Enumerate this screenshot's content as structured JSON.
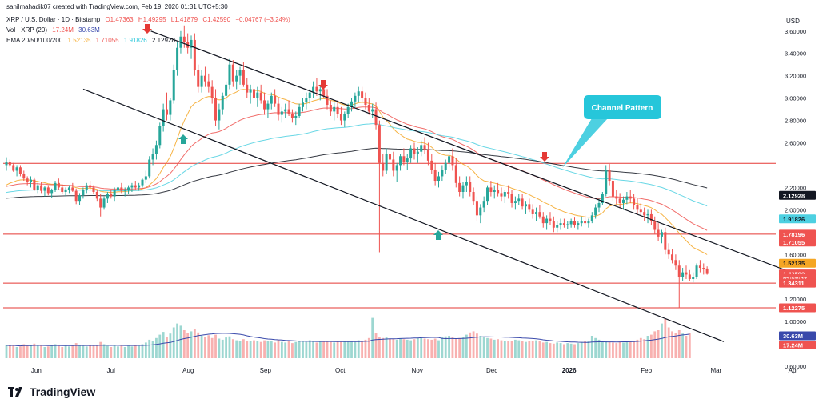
{
  "header": {
    "attribution": "sahilmahadik07 created with TradingView.com, Feb 19, 2026 01:31 UTC+5:30",
    "symbol_line": "XRP / U.S. Dollar · 1D · Bitstamp",
    "ohlc": {
      "open": "O1.47363",
      "high": "H1.49295",
      "low": "L1.41879",
      "close": "C1.42590",
      "change": "−0.04767 (−3.24%)"
    },
    "vol_label": "Vol · XRP (20)",
    "vol_values": [
      "17.24M",
      "30.63M"
    ],
    "ema_label": "EMA 20/50/100/200",
    "ema_values": [
      "1.52135",
      "1.71055",
      "1.91826",
      "2.12928"
    ],
    "currency": "USD"
  },
  "footer": {
    "brand": "TradingView"
  },
  "colors": {
    "up": "#26a69a",
    "down": "#ef5350",
    "ema20": "#f5a623",
    "ema50": "#ef5350",
    "ema100": "#4dd0e1",
    "ema200": "#131722",
    "hline": "#e53935",
    "channel": "#131722",
    "vol_ma": "#3949ab"
  },
  "chart_data": {
    "type": "candlestick",
    "x_labels": [
      "Jun",
      "Jul",
      "Aug",
      "Sep",
      "Oct",
      "Nov",
      "Dec",
      "2026",
      "Feb",
      "Mar",
      "Apr"
    ],
    "y_ticks": [
      "3.60000",
      "3.40000",
      "3.20000",
      "3.00000",
      "2.80000",
      "2.60000",
      "2.20000",
      "2.00000",
      "1.60000",
      "1.20000",
      "1.00000",
      "0.60000"
    ],
    "ylim": [
      0.6,
      3.72
    ],
    "horizontal_levels": [
      {
        "label": "2.41615",
        "value": 2.41615
      },
      {
        "label": "1.78196",
        "value": 1.78196
      },
      {
        "label": "1.34311",
        "value": 1.34311
      },
      {
        "label": "1.12275",
        "value": 1.12275
      }
    ],
    "price_labels": [
      {
        "label": "2.12928",
        "value": 2.12928,
        "style": "dark"
      },
      {
        "label": "1.91826",
        "value": 1.91826,
        "style": "cyan"
      },
      {
        "label": "1.78196",
        "value": 1.78196,
        "style": "red"
      },
      {
        "label": "1.71055",
        "value": 1.71055,
        "style": "red"
      },
      {
        "label": "1.52135",
        "value": 1.52135,
        "style": "orange"
      },
      {
        "label": "1.42590",
        "value": 1.4259,
        "style": "red"
      },
      {
        "label": "03:58:07",
        "value": 1.385,
        "style": "red"
      },
      {
        "label": "1.34311",
        "value": 1.34311,
        "style": "red"
      },
      {
        "label": "1.12275",
        "value": 1.12275,
        "style": "red"
      },
      {
        "label": "30.63M",
        "value": 0.872,
        "style": "blue"
      },
      {
        "label": "17.24M",
        "value": 0.79,
        "style": "red"
      }
    ],
    "channel_upper": [
      [
        "Jul 17",
        3.6
      ],
      [
        "Mar 30",
        1.45
      ]
    ],
    "channel_lower": [
      [
        "May 20",
        3.08
      ],
      [
        "Apr 6",
        0.82
      ]
    ],
    "annotation": {
      "text": "Channel Pattern"
    },
    "ohlc_daily": [
      [
        2.4,
        2.47,
        2.35,
        2.43
      ],
      [
        2.43,
        2.45,
        2.38,
        2.4
      ],
      [
        2.4,
        2.42,
        2.34,
        2.35
      ],
      [
        2.35,
        2.4,
        2.3,
        2.38
      ],
      [
        2.38,
        2.4,
        2.3,
        2.32
      ],
      [
        2.32,
        2.35,
        2.26,
        2.28
      ],
      [
        2.28,
        2.3,
        2.22,
        2.25
      ],
      [
        2.25,
        2.3,
        2.2,
        2.27
      ],
      [
        2.27,
        2.29,
        2.17,
        2.18
      ],
      [
        2.18,
        2.24,
        2.15,
        2.22
      ],
      [
        2.22,
        2.25,
        2.15,
        2.17
      ],
      [
        2.17,
        2.21,
        2.12,
        2.2
      ],
      [
        2.2,
        2.22,
        2.13,
        2.15
      ],
      [
        2.15,
        2.19,
        2.11,
        2.18
      ],
      [
        2.18,
        2.26,
        2.16,
        2.24
      ],
      [
        2.24,
        2.28,
        2.18,
        2.2
      ],
      [
        2.2,
        2.23,
        2.14,
        2.16
      ],
      [
        2.16,
        2.2,
        2.12,
        2.18
      ],
      [
        2.18,
        2.22,
        2.15,
        2.2
      ],
      [
        2.2,
        2.24,
        2.16,
        2.17
      ],
      [
        2.17,
        2.19,
        2.05,
        2.08
      ],
      [
        2.08,
        2.15,
        2.04,
        2.13
      ],
      [
        2.13,
        2.2,
        2.1,
        2.18
      ],
      [
        2.18,
        2.24,
        2.15,
        2.22
      ],
      [
        2.22,
        2.26,
        2.18,
        2.2
      ],
      [
        2.2,
        2.22,
        2.14,
        2.16
      ],
      [
        2.16,
        2.18,
        2.08,
        2.1
      ],
      [
        2.1,
        2.14,
        1.94,
        2.02
      ],
      [
        2.02,
        2.12,
        2.0,
        2.1
      ],
      [
        2.1,
        2.16,
        2.06,
        2.14
      ],
      [
        2.14,
        2.18,
        2.1,
        2.12
      ],
      [
        2.12,
        2.2,
        2.08,
        2.18
      ],
      [
        2.18,
        2.22,
        2.14,
        2.2
      ],
      [
        2.2,
        2.24,
        2.15,
        2.17
      ],
      [
        2.17,
        2.2,
        2.12,
        2.18
      ],
      [
        2.18,
        2.22,
        2.14,
        2.2
      ],
      [
        2.2,
        2.24,
        2.16,
        2.22
      ],
      [
        2.22,
        2.26,
        2.18,
        2.2
      ],
      [
        2.2,
        2.24,
        2.17,
        2.22
      ],
      [
        2.22,
        2.28,
        2.2,
        2.27
      ],
      [
        2.27,
        2.35,
        2.24,
        2.3
      ],
      [
        2.3,
        2.48,
        2.28,
        2.45
      ],
      [
        2.45,
        2.55,
        2.4,
        2.5
      ],
      [
        2.5,
        2.62,
        2.45,
        2.58
      ],
      [
        2.58,
        2.78,
        2.55,
        2.75
      ],
      [
        2.75,
        2.95,
        2.7,
        2.9
      ],
      [
        2.9,
        3.05,
        2.8,
        2.85
      ],
      [
        2.85,
        3.0,
        2.8,
        2.98
      ],
      [
        2.98,
        3.3,
        2.95,
        3.25
      ],
      [
        3.25,
        3.5,
        3.2,
        3.45
      ],
      [
        3.45,
        3.6,
        3.4,
        3.55
      ],
      [
        3.55,
        3.65,
        3.45,
        3.5
      ],
      [
        3.5,
        3.58,
        3.4,
        3.45
      ],
      [
        3.45,
        3.56,
        3.35,
        3.52
      ],
      [
        3.52,
        3.58,
        3.2,
        3.25
      ],
      [
        3.25,
        3.3,
        3.05,
        3.1
      ],
      [
        3.1,
        3.25,
        3.05,
        3.2
      ],
      [
        3.2,
        3.28,
        3.1,
        3.15
      ],
      [
        3.15,
        3.22,
        3.05,
        3.1
      ],
      [
        3.1,
        3.16,
        2.95,
        3.0
      ],
      [
        3.0,
        3.08,
        2.75,
        2.8
      ],
      [
        2.8,
        2.95,
        2.72,
        2.9
      ],
      [
        2.9,
        3.05,
        2.85,
        3.02
      ],
      [
        3.02,
        3.15,
        2.98,
        3.12
      ],
      [
        3.12,
        3.35,
        3.08,
        3.3
      ],
      [
        3.3,
        3.34,
        3.1,
        3.15
      ],
      [
        3.15,
        3.25,
        3.08,
        3.2
      ],
      [
        3.2,
        3.28,
        3.12,
        3.25
      ],
      [
        3.25,
        3.32,
        3.1,
        3.12
      ],
      [
        3.12,
        3.18,
        3.0,
        3.05
      ],
      [
        3.05,
        3.12,
        2.95,
        3.08
      ],
      [
        3.08,
        3.15,
        2.98,
        3.0
      ],
      [
        3.0,
        3.1,
        2.92,
        3.05
      ],
      [
        3.05,
        3.12,
        2.95,
        2.98
      ],
      [
        2.98,
        3.05,
        2.85,
        2.9
      ],
      [
        2.9,
        2.98,
        2.82,
        2.95
      ],
      [
        2.95,
        3.05,
        2.9,
        3.02
      ],
      [
        3.02,
        3.08,
        2.92,
        2.95
      ],
      [
        2.95,
        3.0,
        2.8,
        2.85
      ],
      [
        2.85,
        2.92,
        2.78,
        2.88
      ],
      [
        2.88,
        2.95,
        2.82,
        2.9
      ],
      [
        2.9,
        2.98,
        2.84,
        2.86
      ],
      [
        2.86,
        2.9,
        2.78,
        2.82
      ],
      [
        2.82,
        2.88,
        2.76,
        2.84
      ],
      [
        2.84,
        2.95,
        2.82,
        2.92
      ],
      [
        2.92,
        3.0,
        2.88,
        2.96
      ],
      [
        2.96,
        3.05,
        2.9,
        3.0
      ],
      [
        3.0,
        3.08,
        2.95,
        3.05
      ],
      [
        3.05,
        3.15,
        3.0,
        3.1
      ],
      [
        3.1,
        3.18,
        3.02,
        3.06
      ],
      [
        3.06,
        3.12,
        2.98,
        3.08
      ],
      [
        3.08,
        3.14,
        3.0,
        3.02
      ],
      [
        3.02,
        3.08,
        2.9,
        2.94
      ],
      [
        2.94,
        2.98,
        2.84,
        2.88
      ],
      [
        2.88,
        2.96,
        2.8,
        2.92
      ],
      [
        2.92,
        2.98,
        2.82,
        2.86
      ],
      [
        2.86,
        2.92,
        2.76,
        2.8
      ],
      [
        2.8,
        2.88,
        2.74,
        2.86
      ],
      [
        2.86,
        2.95,
        2.82,
        2.92
      ],
      [
        2.92,
        3.0,
        2.88,
        2.97
      ],
      [
        2.97,
        3.05,
        2.92,
        3.02
      ],
      [
        3.02,
        3.1,
        2.96,
        3.06
      ],
      [
        3.06,
        3.1,
        2.96,
        3.0
      ],
      [
        3.0,
        3.05,
        2.9,
        2.94
      ],
      [
        2.94,
        3.0,
        2.85,
        2.88
      ],
      [
        2.88,
        2.95,
        2.82,
        2.9
      ],
      [
        2.9,
        2.96,
        2.72,
        2.76
      ],
      [
        2.76,
        2.8,
        1.62,
        2.42
      ],
      [
        2.42,
        2.5,
        2.3,
        2.35
      ],
      [
        2.35,
        2.55,
        2.32,
        2.5
      ],
      [
        2.5,
        2.58,
        2.4,
        2.45
      ],
      [
        2.45,
        2.52,
        2.3,
        2.35
      ],
      [
        2.35,
        2.42,
        2.25,
        2.4
      ],
      [
        2.4,
        2.5,
        2.35,
        2.48
      ],
      [
        2.48,
        2.55,
        2.4,
        2.43
      ],
      [
        2.43,
        2.5,
        2.36,
        2.46
      ],
      [
        2.46,
        2.58,
        2.42,
        2.55
      ],
      [
        2.55,
        2.6,
        2.45,
        2.5
      ],
      [
        2.5,
        2.56,
        2.42,
        2.52
      ],
      [
        2.52,
        2.62,
        2.48,
        2.58
      ],
      [
        2.58,
        2.65,
        2.5,
        2.54
      ],
      [
        2.54,
        2.6,
        2.4,
        2.44
      ],
      [
        2.44,
        2.5,
        2.32,
        2.36
      ],
      [
        2.36,
        2.42,
        2.22,
        2.26
      ],
      [
        2.26,
        2.34,
        2.2,
        2.3
      ],
      [
        2.3,
        2.4,
        2.26,
        2.36
      ],
      [
        2.36,
        2.45,
        2.32,
        2.42
      ],
      [
        2.42,
        2.52,
        2.38,
        2.48
      ],
      [
        2.48,
        2.55,
        2.35,
        2.4
      ],
      [
        2.4,
        2.46,
        2.2,
        2.24
      ],
      [
        2.24,
        2.3,
        2.12,
        2.16
      ],
      [
        2.16,
        2.25,
        2.1,
        2.22
      ],
      [
        2.22,
        2.3,
        2.16,
        2.25
      ],
      [
        2.25,
        2.3,
        2.12,
        2.16
      ],
      [
        2.16,
        2.2,
        2.04,
        2.08
      ],
      [
        2.08,
        2.12,
        1.9,
        1.95
      ],
      [
        1.95,
        2.05,
        1.88,
        2.02
      ],
      [
        2.02,
        2.12,
        1.98,
        2.08
      ],
      [
        2.08,
        2.22,
        2.04,
        2.2
      ],
      [
        2.2,
        2.26,
        2.12,
        2.16
      ],
      [
        2.16,
        2.22,
        2.1,
        2.18
      ],
      [
        2.18,
        2.24,
        2.12,
        2.15
      ],
      [
        2.15,
        2.2,
        2.08,
        2.12
      ],
      [
        2.12,
        2.18,
        2.06,
        2.16
      ],
      [
        2.16,
        2.22,
        2.1,
        2.14
      ],
      [
        2.14,
        2.18,
        2.02,
        2.06
      ],
      [
        2.06,
        2.12,
        2.0,
        2.08
      ],
      [
        2.08,
        2.14,
        2.04,
        2.1
      ],
      [
        2.1,
        2.14,
        2.0,
        2.03
      ],
      [
        2.03,
        2.08,
        1.96,
        2.05
      ],
      [
        2.05,
        2.1,
        1.98,
        2.0
      ],
      [
        2.0,
        2.05,
        1.92,
        1.96
      ],
      [
        1.96,
        2.02,
        1.9,
        1.98
      ],
      [
        1.98,
        2.04,
        1.92,
        1.94
      ],
      [
        1.94,
        1.98,
        1.84,
        1.88
      ],
      [
        1.88,
        1.95,
        1.82,
        1.92
      ],
      [
        1.92,
        1.98,
        1.86,
        1.9
      ],
      [
        1.9,
        1.94,
        1.8,
        1.84
      ],
      [
        1.84,
        1.9,
        1.8,
        1.86
      ],
      [
        1.86,
        1.92,
        1.82,
        1.88
      ],
      [
        1.88,
        1.92,
        1.84,
        1.86
      ],
      [
        1.86,
        1.9,
        1.83,
        1.87
      ],
      [
        1.87,
        1.92,
        1.84,
        1.9
      ],
      [
        1.9,
        1.93,
        1.84,
        1.86
      ],
      [
        1.86,
        1.9,
        1.82,
        1.88
      ],
      [
        1.88,
        1.94,
        1.85,
        1.9
      ],
      [
        1.9,
        1.95,
        1.86,
        1.88
      ],
      [
        1.88,
        1.92,
        1.84,
        1.9
      ],
      [
        1.9,
        1.98,
        1.88,
        1.95
      ],
      [
        1.95,
        2.05,
        1.92,
        2.02
      ],
      [
        2.02,
        2.1,
        1.98,
        2.06
      ],
      [
        2.06,
        2.16,
        2.04,
        2.14
      ],
      [
        2.14,
        2.4,
        2.12,
        2.36
      ],
      [
        2.36,
        2.41,
        2.22,
        2.26
      ],
      [
        2.26,
        2.3,
        2.08,
        2.12
      ],
      [
        2.12,
        2.18,
        2.05,
        2.1
      ],
      [
        2.1,
        2.15,
        2.02,
        2.06
      ],
      [
        2.06,
        2.12,
        2.0,
        2.09
      ],
      [
        2.09,
        2.16,
        2.05,
        2.12
      ],
      [
        2.12,
        2.18,
        2.06,
        2.1
      ],
      [
        2.1,
        2.14,
        2.0,
        2.04
      ],
      [
        2.04,
        2.1,
        1.96,
        2.0
      ],
      [
        2.0,
        2.06,
        1.94,
        1.98
      ],
      [
        1.98,
        2.02,
        1.9,
        1.95
      ],
      [
        1.95,
        2.0,
        1.88,
        1.96
      ],
      [
        1.96,
        2.0,
        1.86,
        1.9
      ],
      [
        1.9,
        1.94,
        1.78,
        1.82
      ],
      [
        1.82,
        1.88,
        1.72,
        1.76
      ],
      [
        1.76,
        1.82,
        1.7,
        1.8
      ],
      [
        1.8,
        1.84,
        1.6,
        1.64
      ],
      [
        1.64,
        1.7,
        1.56,
        1.6
      ],
      [
        1.6,
        1.65,
        1.52,
        1.55
      ],
      [
        1.55,
        1.6,
        1.46,
        1.5
      ],
      [
        1.5,
        1.55,
        1.12,
        1.4
      ],
      [
        1.4,
        1.48,
        1.36,
        1.44
      ],
      [
        1.44,
        1.5,
        1.38,
        1.42
      ],
      [
        1.42,
        1.46,
        1.36,
        1.38
      ],
      [
        1.38,
        1.44,
        1.35,
        1.4
      ],
      [
        1.4,
        1.52,
        1.38,
        1.5
      ],
      [
        1.5,
        1.55,
        1.44,
        1.48
      ],
      [
        1.48,
        1.52,
        1.42,
        1.47
      ],
      [
        1.47363,
        1.49295,
        1.41879,
        1.4259
      ]
    ],
    "volume_daily": [
      0.23,
      0.22,
      0.24,
      0.2,
      0.21,
      0.25,
      0.22,
      0.23,
      0.26,
      0.22,
      0.24,
      0.2,
      0.21,
      0.23,
      0.25,
      0.22,
      0.2,
      0.22,
      0.21,
      0.23,
      0.27,
      0.24,
      0.22,
      0.21,
      0.23,
      0.22,
      0.24,
      0.29,
      0.25,
      0.22,
      0.2,
      0.23,
      0.21,
      0.22,
      0.2,
      0.22,
      0.21,
      0.23,
      0.22,
      0.25,
      0.28,
      0.33,
      0.3,
      0.36,
      0.42,
      0.47,
      0.38,
      0.44,
      0.55,
      0.62,
      0.58,
      0.5,
      0.45,
      0.48,
      0.52,
      0.46,
      0.4,
      0.38,
      0.41,
      0.36,
      0.42,
      0.35,
      0.33,
      0.37,
      0.39,
      0.34,
      0.32,
      0.3,
      0.34,
      0.31,
      0.3,
      0.32,
      0.3,
      0.29,
      0.32,
      0.31,
      0.3,
      0.28,
      0.33,
      0.29,
      0.28,
      0.3,
      0.27,
      0.29,
      0.3,
      0.31,
      0.29,
      0.32,
      0.3,
      0.28,
      0.3,
      0.31,
      0.3,
      0.29,
      0.28,
      0.3,
      0.29,
      0.3,
      0.31,
      0.3,
      0.29,
      0.32,
      0.3,
      0.33,
      0.36,
      0.72,
      0.45,
      0.38,
      0.36,
      0.37,
      0.35,
      0.34,
      0.33,
      0.35,
      0.34,
      0.33,
      0.32,
      0.34,
      0.36,
      0.38,
      0.35,
      0.34,
      0.33,
      0.35,
      0.32,
      0.37,
      0.39,
      0.4,
      0.37,
      0.35,
      0.36,
      0.38,
      0.42,
      0.46,
      0.48,
      0.44,
      0.4,
      0.38,
      0.36,
      0.35,
      0.33,
      0.34,
      0.32,
      0.3,
      0.31,
      0.3,
      0.33,
      0.32,
      0.3,
      0.29,
      0.31,
      0.3,
      0.32,
      0.3,
      0.28,
      0.29,
      0.27,
      0.26,
      0.28,
      0.27,
      0.25,
      0.27,
      0.26,
      0.25,
      0.27,
      0.28,
      0.3,
      0.31,
      0.4,
      0.36,
      0.33,
      0.31,
      0.3,
      0.29,
      0.28,
      0.27,
      0.29,
      0.28,
      0.3,
      0.29,
      0.31,
      0.33,
      0.36,
      0.34,
      0.4,
      0.42,
      0.48,
      0.5,
      0.62,
      0.7,
      0.55,
      0.48,
      0.45,
      0.5,
      0.44,
      0.4,
      0.45
    ]
  }
}
